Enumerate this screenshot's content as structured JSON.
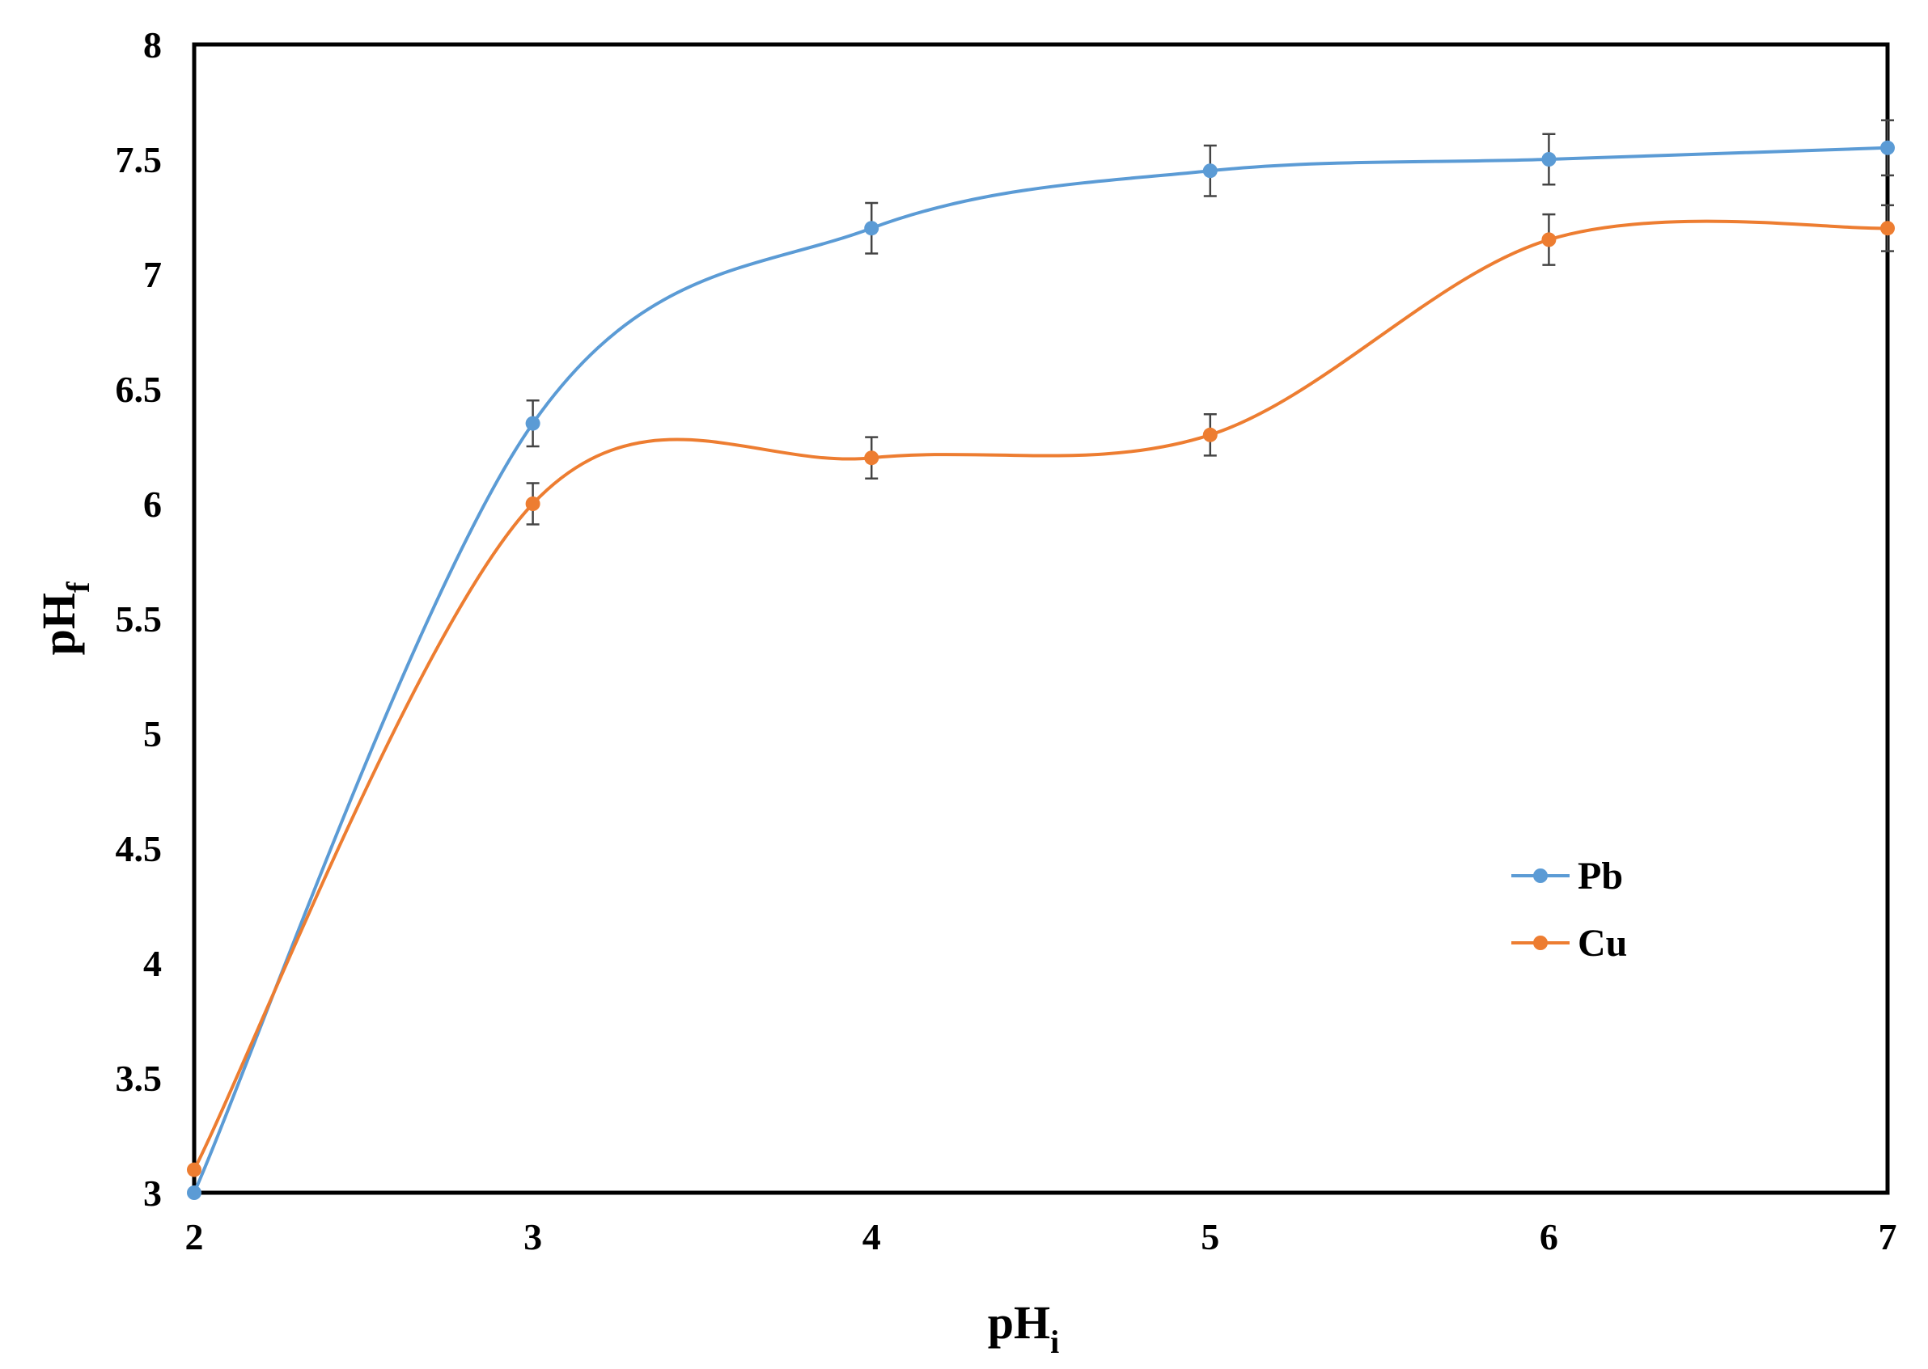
{
  "chart_data": {
    "type": "line",
    "title": "",
    "xlabel": {
      "main": "pH",
      "sub": "i"
    },
    "ylabel": {
      "main": "pH",
      "sub": "f"
    },
    "x": [
      2,
      3,
      4,
      5,
      6,
      7
    ],
    "xlim": [
      2,
      7
    ],
    "ylim": [
      3,
      8
    ],
    "xticks": [
      "2",
      "3",
      "4",
      "5",
      "6",
      "7"
    ],
    "yticks": [
      "3",
      "3.5",
      "4",
      "4.5",
      "5",
      "5.5",
      "6",
      "6.5",
      "7",
      "7.5",
      "8"
    ],
    "grid": false,
    "legend_position": "right, lower-middle",
    "smooth": true,
    "series": [
      {
        "name": "Pb",
        "color": "#5B9BD5",
        "values": [
          3.0,
          6.35,
          7.2,
          7.45,
          7.5,
          7.55
        ],
        "errors": [
          0.0,
          0.1,
          0.11,
          0.11,
          0.11,
          0.12
        ]
      },
      {
        "name": "Cu",
        "color": "#ED7D31",
        "values": [
          3.1,
          6.0,
          6.2,
          6.3,
          7.15,
          7.2
        ],
        "errors": [
          0.0,
          0.09,
          0.09,
          0.09,
          0.11,
          0.1
        ]
      }
    ]
  }
}
